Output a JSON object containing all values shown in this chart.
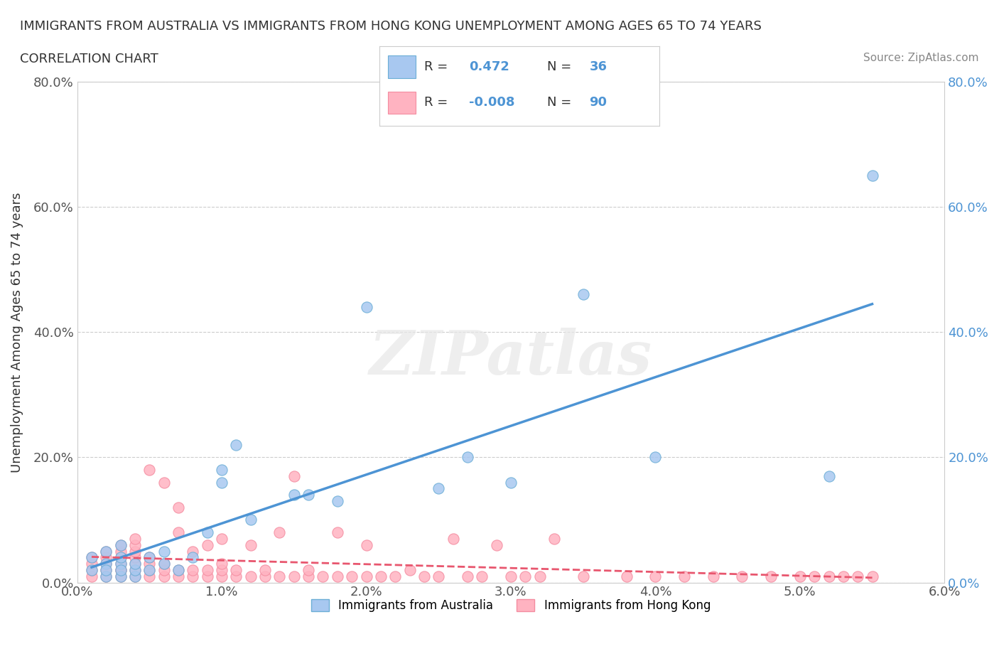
{
  "title_line1": "IMMIGRANTS FROM AUSTRALIA VS IMMIGRANTS FROM HONG KONG UNEMPLOYMENT AMONG AGES 65 TO 74 YEARS",
  "title_line2": "CORRELATION CHART",
  "source_text": "Source: ZipAtlas.com",
  "xlabel": "",
  "ylabel": "Unemployment Among Ages 65 to 74 years",
  "xlim": [
    0.0,
    0.06
  ],
  "ylim": [
    0.0,
    0.8
  ],
  "xticks": [
    0.0,
    0.01,
    0.02,
    0.03,
    0.04,
    0.05,
    0.06
  ],
  "xticklabels": [
    "0.0%",
    "1.0%",
    "2.0%",
    "3.0%",
    "4.0%",
    "5.0%",
    "6.0%"
  ],
  "yticks": [
    0.0,
    0.2,
    0.4,
    0.6,
    0.8
  ],
  "yticklabels": [
    "0.0%",
    "20.0%",
    "40.0%",
    "60.0%",
    "80.0%"
  ],
  "australia_color": "#a8c8f0",
  "australia_edge": "#6baed6",
  "hongkong_color": "#ffb3c1",
  "hongkong_edge": "#f48ca0",
  "trend_australia_color": "#4d94d4",
  "trend_hongkong_color": "#e8566e",
  "R_australia": 0.472,
  "N_australia": 36,
  "R_hongkong": -0.008,
  "N_hongkong": 90,
  "legend1_label": "Immigrants from Australia",
  "legend2_label": "Immigrants from Hong Kong",
  "watermark": "ZIPatlas",
  "australia_x": [
    0.001,
    0.001,
    0.002,
    0.002,
    0.002,
    0.002,
    0.003,
    0.003,
    0.003,
    0.003,
    0.003,
    0.004,
    0.004,
    0.004,
    0.005,
    0.005,
    0.006,
    0.006,
    0.007,
    0.008,
    0.009,
    0.01,
    0.01,
    0.011,
    0.012,
    0.015,
    0.016,
    0.018,
    0.02,
    0.025,
    0.027,
    0.03,
    0.035,
    0.04,
    0.052,
    0.055
  ],
  "australia_y": [
    0.02,
    0.04,
    0.01,
    0.03,
    0.05,
    0.02,
    0.01,
    0.03,
    0.06,
    0.02,
    0.04,
    0.01,
    0.02,
    0.03,
    0.02,
    0.04,
    0.03,
    0.05,
    0.02,
    0.04,
    0.08,
    0.16,
    0.18,
    0.22,
    0.1,
    0.14,
    0.14,
    0.13,
    0.44,
    0.15,
    0.2,
    0.16,
    0.46,
    0.2,
    0.17,
    0.65
  ],
  "hongkong_x": [
    0.001,
    0.001,
    0.001,
    0.001,
    0.002,
    0.002,
    0.002,
    0.002,
    0.002,
    0.003,
    0.003,
    0.003,
    0.003,
    0.003,
    0.003,
    0.003,
    0.004,
    0.004,
    0.004,
    0.004,
    0.004,
    0.004,
    0.004,
    0.005,
    0.005,
    0.005,
    0.005,
    0.005,
    0.006,
    0.006,
    0.006,
    0.006,
    0.007,
    0.007,
    0.007,
    0.007,
    0.008,
    0.008,
    0.008,
    0.009,
    0.009,
    0.009,
    0.01,
    0.01,
    0.01,
    0.01,
    0.011,
    0.011,
    0.012,
    0.012,
    0.013,
    0.013,
    0.014,
    0.014,
    0.015,
    0.015,
    0.016,
    0.016,
    0.017,
    0.018,
    0.018,
    0.019,
    0.02,
    0.02,
    0.021,
    0.022,
    0.023,
    0.024,
    0.025,
    0.026,
    0.027,
    0.028,
    0.029,
    0.03,
    0.031,
    0.032,
    0.033,
    0.035,
    0.038,
    0.04,
    0.042,
    0.044,
    0.046,
    0.048,
    0.05,
    0.051,
    0.052,
    0.053,
    0.054,
    0.055
  ],
  "hongkong_y": [
    0.01,
    0.02,
    0.03,
    0.04,
    0.01,
    0.02,
    0.03,
    0.04,
    0.05,
    0.01,
    0.02,
    0.03,
    0.04,
    0.05,
    0.06,
    0.02,
    0.01,
    0.02,
    0.03,
    0.04,
    0.05,
    0.06,
    0.07,
    0.01,
    0.02,
    0.03,
    0.04,
    0.18,
    0.01,
    0.02,
    0.03,
    0.16,
    0.01,
    0.02,
    0.08,
    0.12,
    0.01,
    0.02,
    0.05,
    0.01,
    0.02,
    0.06,
    0.01,
    0.02,
    0.03,
    0.07,
    0.01,
    0.02,
    0.01,
    0.06,
    0.01,
    0.02,
    0.01,
    0.08,
    0.01,
    0.17,
    0.01,
    0.02,
    0.01,
    0.01,
    0.08,
    0.01,
    0.01,
    0.06,
    0.01,
    0.01,
    0.02,
    0.01,
    0.01,
    0.07,
    0.01,
    0.01,
    0.06,
    0.01,
    0.01,
    0.01,
    0.07,
    0.01,
    0.01,
    0.01,
    0.01,
    0.01,
    0.01,
    0.01,
    0.01,
    0.01,
    0.01,
    0.01,
    0.01,
    0.01
  ]
}
